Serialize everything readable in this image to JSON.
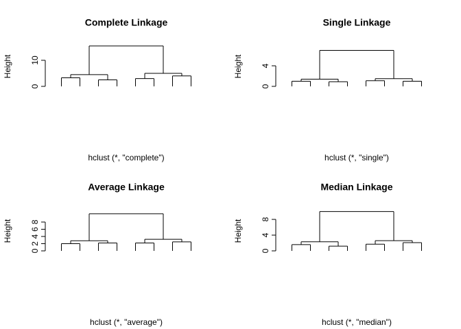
{
  "chart_data": [
    {
      "type": "dendrogram",
      "title": "Complete Linkage",
      "xlabel": "hclust (*, \"complete\")",
      "ylabel": "Height",
      "ylim": [
        0,
        16.3
      ],
      "yticks": [
        0,
        10
      ],
      "tree": {
        "height": 15.5,
        "children": [
          {
            "height": 4.5,
            "children": [
              {
                "height": 3.3
              },
              {
                "height": 2.5
              }
            ]
          },
          {
            "height": 5.0,
            "children": [
              {
                "height": 3.0
              },
              {
                "height": 4.0
              }
            ]
          }
        ]
      }
    },
    {
      "type": "dendrogram",
      "title": "Single Linkage",
      "xlabel": "hclust (*, \"single\")",
      "ylabel": "Height",
      "ylim": [
        0,
        8.27
      ],
      "yticks": [
        0,
        4
      ],
      "tree": {
        "height": 7.0,
        "children": [
          {
            "height": 1.4,
            "children": [
              {
                "height": 1.0
              },
              {
                "height": 0.9
              }
            ]
          },
          {
            "height": 1.5,
            "children": [
              {
                "height": 1.1
              },
              {
                "height": 1.0
              }
            ]
          }
        ]
      }
    },
    {
      "type": "dendrogram",
      "title": "Average Linkage",
      "xlabel": "hclust (*, \"average\")",
      "ylabel": "Height",
      "ylim": [
        0,
        11.8
      ],
      "yticks": [
        0,
        2,
        4,
        6,
        8
      ],
      "tree": {
        "height": 10.3,
        "children": [
          {
            "height": 2.8,
            "children": [
              {
                "height": 2.0
              },
              {
                "height": 2.2
              }
            ]
          },
          {
            "height": 3.2,
            "children": [
              {
                "height": 2.2
              },
              {
                "height": 2.5
              }
            ]
          }
        ]
      }
    },
    {
      "type": "dendrogram",
      "title": "Median Linkage",
      "xlabel": "hclust (*, \"median\")",
      "ylabel": "Height",
      "ylim": [
        0,
        10.8
      ],
      "yticks": [
        0,
        4,
        8
      ],
      "tree": {
        "height": 10.0,
        "children": [
          {
            "height": 2.3,
            "children": [
              {
                "height": 1.6
              },
              {
                "height": 1.2
              }
            ]
          },
          {
            "height": 2.6,
            "children": [
              {
                "height": 1.7
              },
              {
                "height": 2.1
              }
            ]
          }
        ]
      }
    }
  ]
}
